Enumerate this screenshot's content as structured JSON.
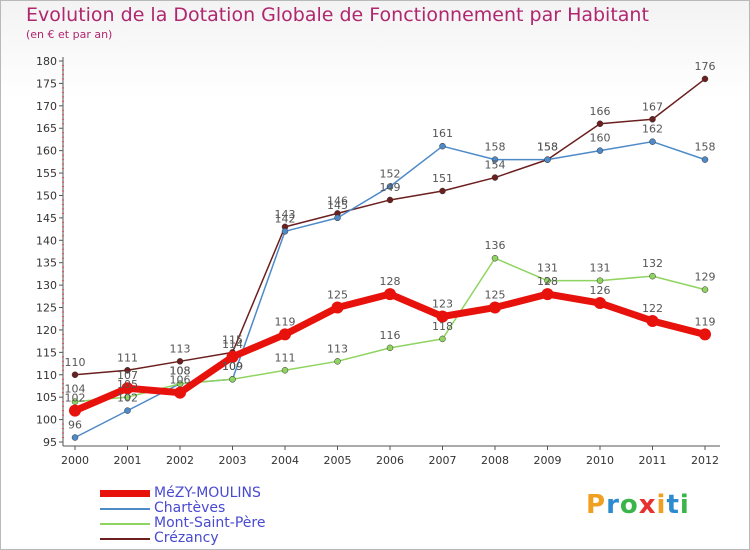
{
  "title": "Evolution de la Dotation Globale de Fonctionnement par Habitant",
  "subtitle": "(en € et par an)",
  "logo": [
    "P",
    "r",
    "o",
    "x",
    "i",
    "t",
    "i"
  ],
  "logo_colors": [
    "#f0a020",
    "#2e8bd0",
    "#39b54a",
    "#e8312f",
    "#f0a020",
    "#2e8bd0",
    "#39b54a"
  ],
  "chart_data": {
    "type": "line",
    "title": "Evolution de la Dotation Globale de Fonctionnement par Habitant",
    "subtitle": "(en € et par an)",
    "xlabel": "",
    "ylabel": "",
    "x": [
      "2000",
      "2001",
      "2002",
      "2003",
      "2004",
      "2005",
      "2006",
      "2007",
      "2008",
      "2009",
      "2010",
      "2011",
      "2012"
    ],
    "ylim": [
      95,
      180
    ],
    "yticks": [
      95,
      100,
      105,
      110,
      115,
      120,
      125,
      130,
      135,
      140,
      145,
      150,
      155,
      160,
      165,
      170,
      175,
      180
    ],
    "grid": false,
    "legend_position": "bottom-left",
    "series": [
      {
        "name": "MéZY-MOULINS",
        "color": "#e8120c",
        "values": [
          102,
          107,
          106,
          114,
          119,
          125,
          128,
          123,
          125,
          128,
          126,
          122,
          119
        ]
      },
      {
        "name": "Chartèves",
        "color": "#4e8ac8",
        "values": [
          96,
          102,
          108,
          109,
          142,
          145,
          152,
          161,
          158,
          158,
          160,
          162,
          158
        ]
      },
      {
        "name": "Mont-Saint-Père",
        "color": "#8fd460",
        "values": [
          104,
          105,
          108,
          109,
          111,
          113,
          116,
          118,
          136,
          131,
          131,
          132,
          129
        ]
      },
      {
        "name": "Crézancy",
        "color": "#6b1f1f",
        "values": [
          110,
          111,
          113,
          115,
          143,
          146,
          149,
          151,
          154,
          158,
          166,
          167,
          176
        ]
      }
    ]
  }
}
